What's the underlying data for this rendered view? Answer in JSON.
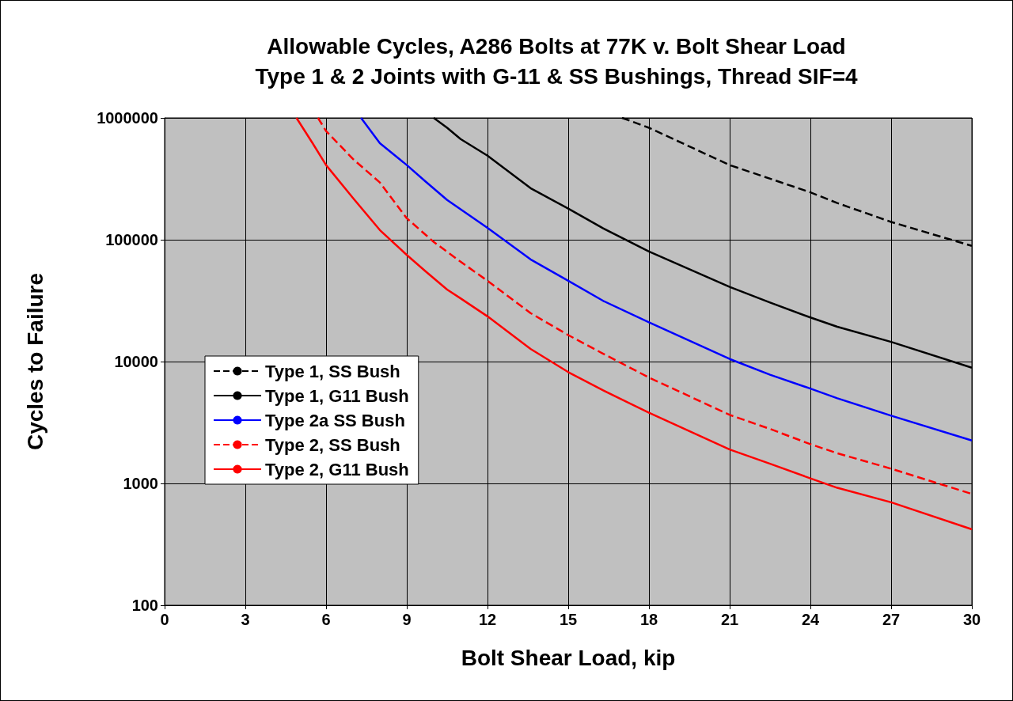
{
  "chart_data": {
    "type": "line",
    "title": "Allowable Cycles, A286 Bolts at 77K v. Bolt Shear Load",
    "subtitle": "Type 1 & 2 Joints with G-11 & SS Bushings, Thread SIF=4",
    "xlabel": "Bolt Shear Load, kip",
    "ylabel": "Cycles to Failure",
    "xlim": [
      0,
      30
    ],
    "xticks": [
      0,
      3,
      6,
      9,
      12,
      15,
      18,
      21,
      24,
      27,
      30
    ],
    "ylim": [
      100,
      1000000
    ],
    "yticks": [
      100,
      1000,
      10000,
      100000,
      1000000
    ],
    "log": "y",
    "grid": true,
    "legend": "left",
    "marker": "none",
    "series": [
      {
        "name": "Type 1, SS Bush",
        "color": "#000000",
        "line_style": "dashed",
        "x": [
          17,
          18,
          21,
          24,
          25,
          27,
          30
        ],
        "values": [
          1000000,
          830000,
          410000,
          245000,
          200000,
          140000,
          89000
        ]
      },
      {
        "name": "Type 1, G11 Bush",
        "color": "#000000",
        "line_style": "solid",
        "x": [
          10,
          10.5,
          11,
          12,
          13.6,
          15,
          16.3,
          18,
          21,
          22.5,
          24,
          25,
          27,
          30
        ],
        "values": [
          1000000,
          830000,
          670000,
          490000,
          265000,
          180000,
          124000,
          80000,
          41000,
          30500,
          23000,
          19300,
          14500,
          8900
        ]
      },
      {
        "name": "Type 2a SS Bush",
        "color": "#0000ff",
        "line_style": "solid",
        "x": [
          7.3,
          8,
          9,
          9.7,
          10.5,
          12,
          13.6,
          15,
          16.3,
          18,
          21,
          22.5,
          24,
          25,
          27,
          30
        ],
        "values": [
          1000000,
          620000,
          410000,
          300000,
          212000,
          125000,
          69000,
          46000,
          31500,
          21000,
          10500,
          7800,
          6000,
          5000,
          3600,
          2250
        ]
      },
      {
        "name": "Type 2, SS Bush",
        "color": "#ff0000",
        "line_style": "dashed",
        "x": [
          5.7,
          6,
          7,
          8,
          9,
          10,
          11,
          12,
          13.6,
          15,
          16.3,
          18,
          21,
          22.5,
          24,
          25,
          27,
          30
        ],
        "values": [
          1000000,
          780000,
          460000,
          295000,
          150000,
          96000,
          66000,
          46000,
          25000,
          16500,
          11600,
          7400,
          3650,
          2800,
          2100,
          1770,
          1320,
          820
        ]
      },
      {
        "name": "Type 2, G11 Bush",
        "color": "#ff0000",
        "line_style": "solid",
        "x": [
          4.9,
          5.5,
          6,
          7,
          8,
          9,
          9.7,
          10.5,
          11,
          12,
          13.6,
          15,
          16.3,
          18,
          21,
          22.5,
          24,
          25,
          27,
          30
        ],
        "values": [
          1000000,
          620000,
          410000,
          220000,
          120000,
          75000,
          55000,
          39000,
          33000,
          23500,
          12700,
          8200,
          5800,
          3800,
          1900,
          1450,
          1100,
          920,
          700,
          420
        ]
      }
    ]
  }
}
